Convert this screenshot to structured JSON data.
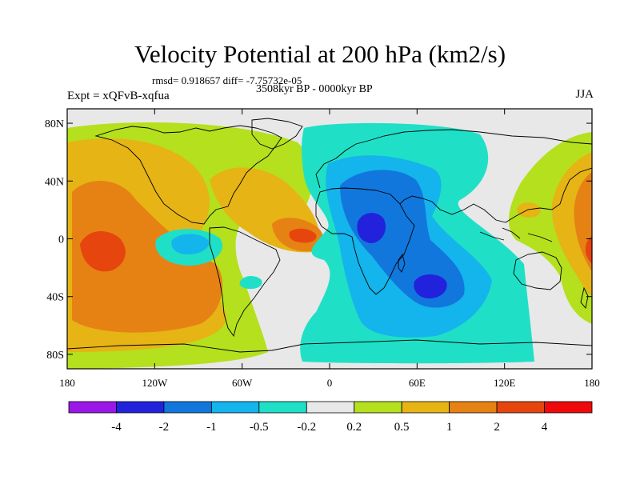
{
  "title": "Velocity Potential at 200 hPa (km2/s)",
  "stats": "rmsd= 0.918657 diff= -7.75732e-05",
  "period": "3508kyr BP - 0000kyr BP",
  "experiment": "Expt = xQFvB-xqfua",
  "season": "JJA",
  "map": {
    "projection": "equirectangular",
    "lon_range": [
      -180,
      180
    ],
    "lat_range": [
      -90,
      90
    ],
    "y_ticks": [
      {
        "lat": 80,
        "label": "80N"
      },
      {
        "lat": 40,
        "label": "40N"
      },
      {
        "lat": 0,
        "label": "0"
      },
      {
        "lat": -40,
        "label": "40S"
      },
      {
        "lat": -80,
        "label": "80S"
      }
    ],
    "x_ticks": [
      {
        "lon": -180,
        "label": "180"
      },
      {
        "lon": -120,
        "label": "120W"
      },
      {
        "lon": -60,
        "label": "60W"
      },
      {
        "lon": 0,
        "label": "0"
      },
      {
        "lon": 60,
        "label": "60E"
      },
      {
        "lon": 120,
        "label": "120E"
      },
      {
        "lon": 180,
        "label": "180"
      }
    ]
  },
  "colorbar": {
    "colors": [
      "#9a17e8",
      "#2222dd",
      "#1177dd",
      "#14b4ec",
      "#1fe0c6",
      "#e8e8e8",
      "#b4e01e",
      "#e6b414",
      "#e68214",
      "#e6460e",
      "#ee0a0a"
    ],
    "labels": [
      "-4",
      "-2",
      "-1",
      "-0.5",
      "-0.2",
      "0.2",
      "0.5",
      "1",
      "2",
      "4"
    ]
  },
  "colors": {
    "background": "#e8e8e8",
    "coastline": "#000000"
  }
}
